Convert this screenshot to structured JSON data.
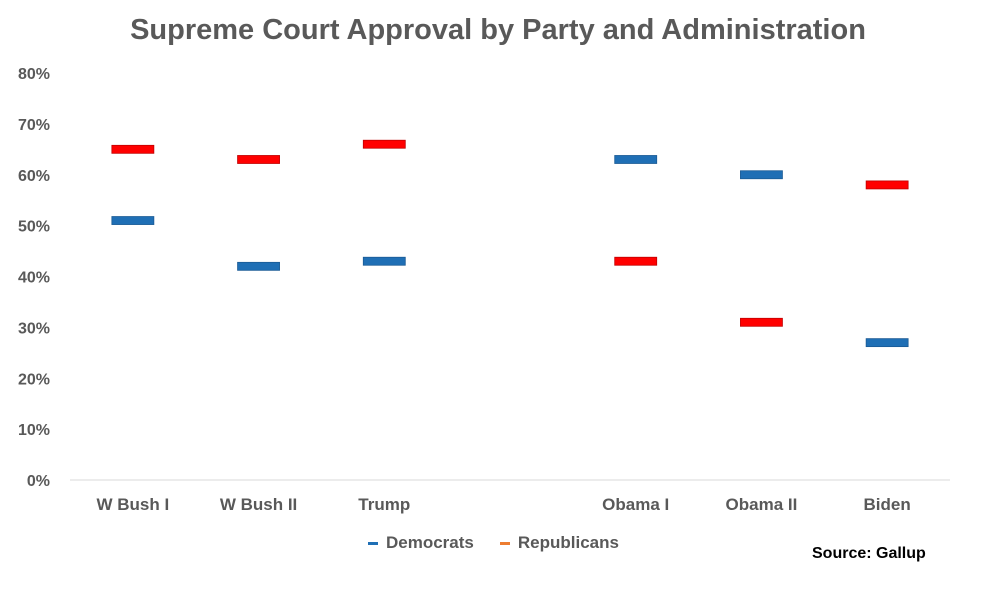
{
  "title": "Supreme Court Approval by Party and Administration",
  "source": "Source: Gallup",
  "colors": {
    "democrats": "#1f6fb5",
    "republicans": "#ff0000",
    "republicans_legend": "#ed7d31",
    "text": "#595959",
    "axis": "#d9d9d9"
  },
  "chart_data": {
    "type": "scatter",
    "categories": [
      "W Bush I",
      "W Bush II",
      "Trump",
      "",
      "Obama I",
      "Obama II",
      "Biden"
    ],
    "series": [
      {
        "name": "Democrats",
        "values": [
          51,
          42,
          43,
          null,
          63,
          60,
          27
        ]
      },
      {
        "name": "Republicans",
        "values": [
          65,
          63,
          66,
          null,
          43,
          31,
          58
        ]
      }
    ],
    "y_ticks": [
      "0%",
      "10%",
      "20%",
      "30%",
      "40%",
      "50%",
      "60%",
      "70%",
      "80%"
    ],
    "ylim": [
      0,
      80
    ],
    "grid": false,
    "legend": "bottom-center"
  }
}
